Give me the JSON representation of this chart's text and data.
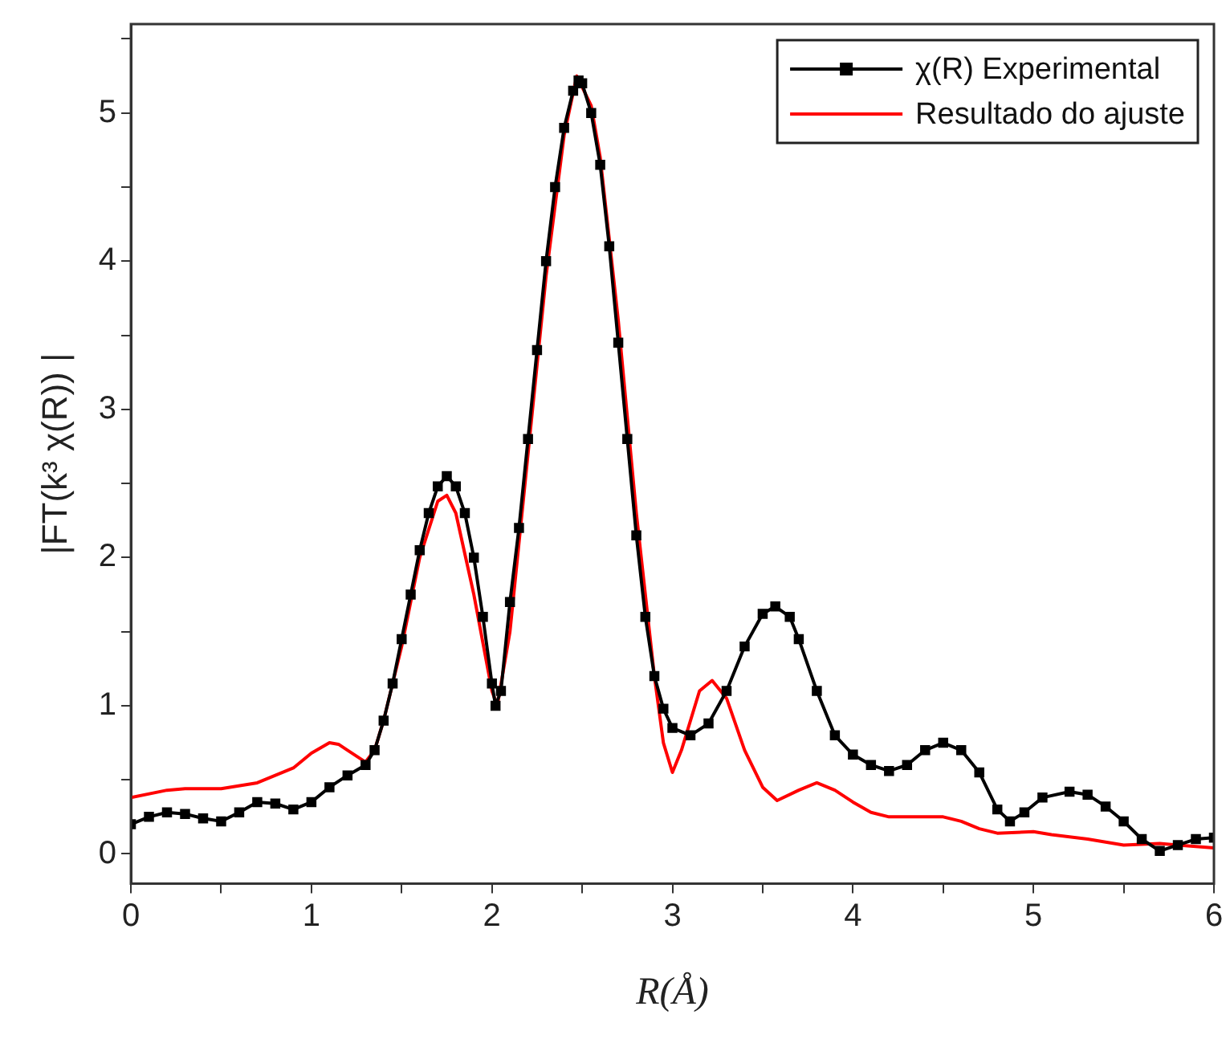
{
  "chart_data": {
    "type": "line",
    "xlabel": "R(Å)",
    "ylabel": "|FT(k³ χ(R)) |",
    "xlim": [
      0,
      6
    ],
    "xticks": [
      0,
      {
        "value": 0.5,
        "label": null
      },
      1,
      {
        "value": 1.5,
        "label": null
      },
      2,
      {
        "value": 2.5,
        "label": null
      },
      3,
      {
        "value": 3.5,
        "label": null
      },
      4,
      {
        "value": 4.5,
        "label": null
      },
      5,
      {
        "value": 5.5,
        "label": null
      },
      6
    ],
    "ylim": [
      -0.2,
      5.6
    ],
    "yticks": [
      0,
      {
        "value": 0.5,
        "label": null
      },
      1,
      {
        "value": 1.5,
        "label": null
      },
      2,
      {
        "value": 2.5,
        "label": null
      },
      3,
      {
        "value": 3.5,
        "label": null
      },
      4,
      {
        "value": 4.5,
        "label": null
      },
      5,
      {
        "value": 5.5,
        "label": null
      }
    ],
    "grid": false,
    "legend": "top right",
    "series": [
      {
        "name": "χ(R) Experimental",
        "color": "#000000",
        "marker": "square",
        "x": [
          0,
          0.1,
          0.2,
          0.3,
          0.4,
          0.5,
          0.6,
          0.7,
          0.8,
          0.9,
          1.0,
          1.1,
          1.2,
          1.3,
          1.35,
          1.4,
          1.45,
          1.5,
          1.55,
          1.6,
          1.65,
          1.7,
          1.75,
          1.8,
          1.85,
          1.9,
          1.95,
          2.0,
          2.02,
          2.05,
          2.1,
          2.15,
          2.2,
          2.25,
          2.3,
          2.35,
          2.4,
          2.45,
          2.48,
          2.5,
          2.55,
          2.6,
          2.65,
          2.7,
          2.75,
          2.8,
          2.85,
          2.9,
          2.95,
          3.0,
          3.1,
          3.2,
          3.3,
          3.4,
          3.5,
          3.57,
          3.65,
          3.7,
          3.8,
          3.9,
          4.0,
          4.1,
          4.2,
          4.3,
          4.4,
          4.5,
          4.6,
          4.7,
          4.8,
          4.87,
          4.95,
          5.05,
          5.2,
          5.3,
          5.4,
          5.5,
          5.6,
          5.7,
          5.8,
          5.9,
          6.0
        ],
        "values": [
          0.2,
          0.25,
          0.28,
          0.27,
          0.24,
          0.22,
          0.28,
          0.35,
          0.34,
          0.3,
          0.35,
          0.45,
          0.53,
          0.6,
          0.7,
          0.9,
          1.15,
          1.45,
          1.75,
          2.05,
          2.3,
          2.48,
          2.55,
          2.48,
          2.3,
          2.0,
          1.6,
          1.15,
          1.0,
          1.1,
          1.7,
          2.2,
          2.8,
          3.4,
          4.0,
          4.5,
          4.9,
          5.15,
          5.22,
          5.2,
          5.0,
          4.65,
          4.1,
          3.45,
          2.8,
          2.15,
          1.6,
          1.2,
          0.98,
          0.85,
          0.8,
          0.88,
          1.1,
          1.4,
          1.62,
          1.67,
          1.6,
          1.45,
          1.1,
          0.8,
          0.67,
          0.6,
          0.56,
          0.6,
          0.7,
          0.75,
          0.7,
          0.55,
          0.3,
          0.22,
          0.28,
          0.38,
          0.42,
          0.4,
          0.32,
          0.22,
          0.1,
          0.02,
          0.06,
          0.1,
          0.11
        ]
      },
      {
        "name": "Resultado do ajuste",
        "color": "#ff0000",
        "marker": "none",
        "x": [
          0,
          0.2,
          0.3,
          0.5,
          0.7,
          0.9,
          1.0,
          1.1,
          1.15,
          1.2,
          1.3,
          1.35,
          1.4,
          1.5,
          1.6,
          1.7,
          1.75,
          1.8,
          1.9,
          2.0,
          2.03,
          2.1,
          2.2,
          2.3,
          2.4,
          2.47,
          2.55,
          2.6,
          2.7,
          2.8,
          2.9,
          2.95,
          3.0,
          3.05,
          3.15,
          3.22,
          3.3,
          3.4,
          3.5,
          3.58,
          3.7,
          3.8,
          3.9,
          4.0,
          4.1,
          4.2,
          4.4,
          4.5,
          4.6,
          4.7,
          4.8,
          5.0,
          5.1,
          5.3,
          5.5,
          5.7,
          5.8,
          6.0
        ],
        "values": [
          0.38,
          0.43,
          0.44,
          0.44,
          0.48,
          0.58,
          0.68,
          0.75,
          0.74,
          0.7,
          0.62,
          0.7,
          0.9,
          1.4,
          2.0,
          2.38,
          2.42,
          2.3,
          1.75,
          1.1,
          1.0,
          1.5,
          2.7,
          3.9,
          4.85,
          5.25,
          5.05,
          4.7,
          3.6,
          2.3,
          1.2,
          0.75,
          0.55,
          0.7,
          1.1,
          1.17,
          1.05,
          0.7,
          0.45,
          0.36,
          0.43,
          0.48,
          0.43,
          0.35,
          0.28,
          0.25,
          0.25,
          0.25,
          0.22,
          0.17,
          0.14,
          0.15,
          0.13,
          0.1,
          0.06,
          0.07,
          0.06,
          0.04
        ]
      }
    ]
  }
}
